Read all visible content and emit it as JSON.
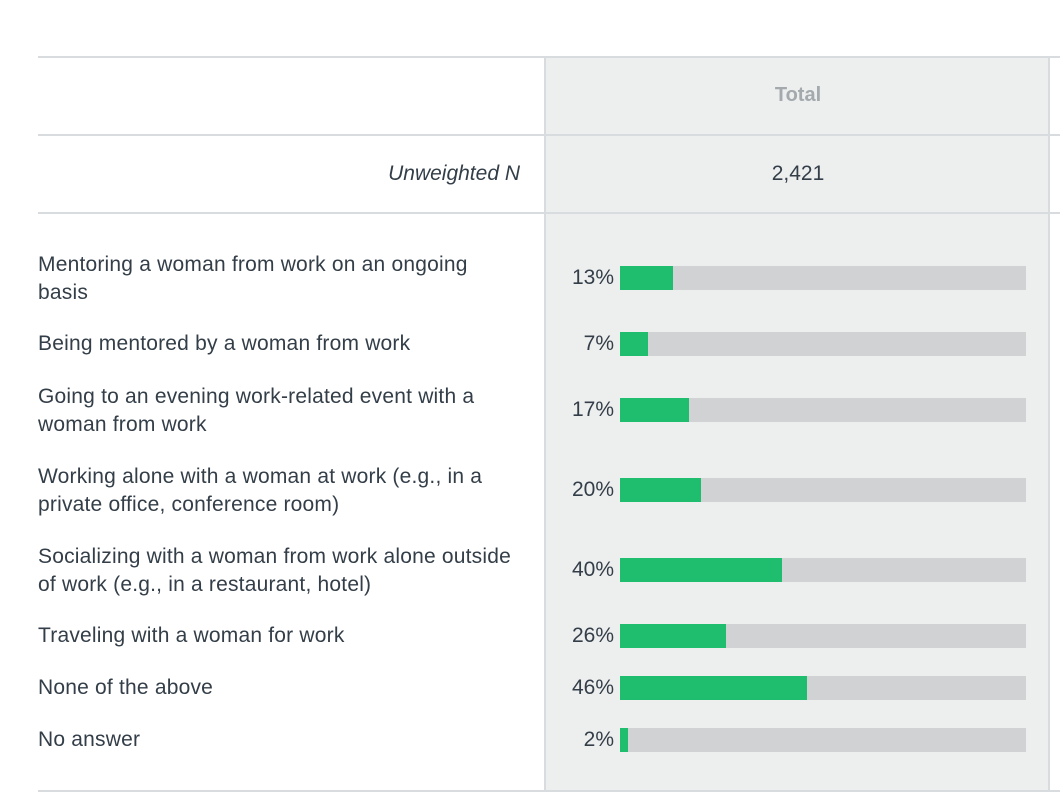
{
  "header": {
    "total_label": "Total",
    "unweighted_label": "Unweighted N",
    "unweighted_value": "2,421"
  },
  "colors": {
    "bar": "#1ebe6e",
    "track": "#d0d2d3",
    "column_bg": "#edeeee"
  },
  "chart_data": {
    "type": "bar",
    "orientation": "horizontal",
    "title": "",
    "column": "Total",
    "categories": [
      "Mentoring a woman from work on an ongoing basis",
      "Being mentored by a woman from work",
      "Going to an evening work-related event with a woman from work",
      "Working alone with a woman at work (e.g., in a private office, conference room)",
      "Socializing with a woman from work alone outside of work (e.g., in a restaurant, hotel)",
      "Traveling with a woman for work",
      "None of the above",
      "No answer"
    ],
    "values": [
      13,
      7,
      17,
      20,
      40,
      26,
      46,
      2
    ],
    "value_labels": [
      "13%",
      "7%",
      "17%",
      "20%",
      "40%",
      "26%",
      "46%",
      "2%"
    ],
    "xlim": [
      0,
      100
    ],
    "unit": "%"
  }
}
